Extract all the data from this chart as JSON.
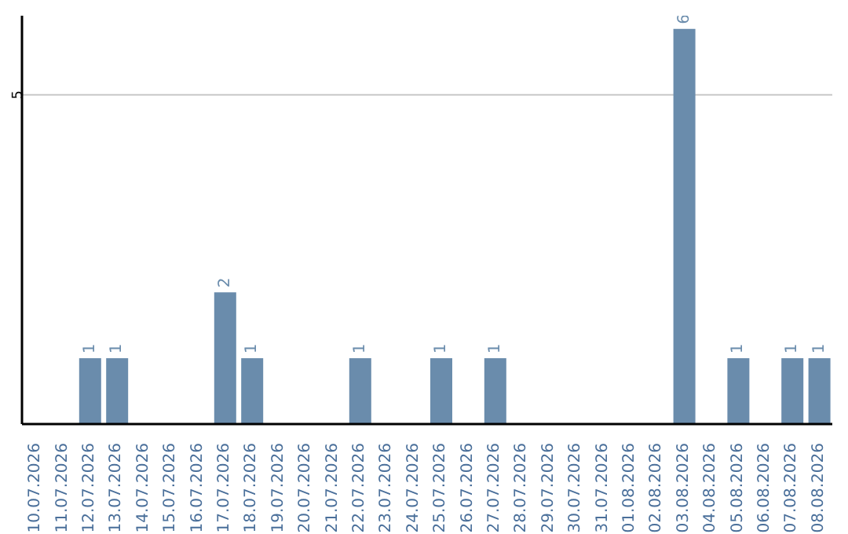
{
  "chart_data": {
    "type": "bar",
    "categories": [
      "10.07.2026",
      "11.07.2026",
      "12.07.2026",
      "13.07.2026",
      "14.07.2026",
      "15.07.2026",
      "16.07.2026",
      "17.07.2026",
      "18.07.2026",
      "19.07.2026",
      "20.07.2026",
      "21.07.2026",
      "22.07.2026",
      "23.07.2026",
      "24.07.2026",
      "25.07.2026",
      "26.07.2026",
      "27.07.2026",
      "28.07.2026",
      "29.07.2026",
      "30.07.2026",
      "31.07.2026",
      "01.08.2026",
      "02.08.2026",
      "03.08.2026",
      "04.08.2026",
      "05.08.2026",
      "06.08.2026",
      "07.08.2026",
      "08.08.2026"
    ],
    "values": [
      0,
      0,
      1,
      1,
      0,
      0,
      0,
      2,
      1,
      0,
      0,
      0,
      1,
      0,
      0,
      1,
      0,
      1,
      0,
      0,
      0,
      0,
      0,
      0,
      6,
      0,
      1,
      0,
      1,
      1
    ],
    "value_labels": [
      null,
      null,
      "1",
      "1",
      null,
      null,
      null,
      "2",
      "1",
      null,
      null,
      null,
      "1",
      null,
      null,
      "1",
      null,
      "1",
      null,
      null,
      null,
      null,
      null,
      null,
      "6",
      null,
      "1",
      null,
      "1",
      "1"
    ],
    "color": "#6a8cac",
    "ylim": [
      0,
      6.2
    ],
    "yticks": [
      5
    ],
    "grid": "y"
  }
}
